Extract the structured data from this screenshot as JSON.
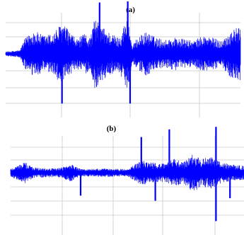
{
  "chart_data": [
    {
      "type": "line",
      "panel_label": "(a)",
      "title": "",
      "xlabel": "",
      "ylabel": "",
      "grid": true,
      "color": "#0000ff",
      "baseline_noise": 0.06,
      "envelope": [
        [
          0.0,
          0.06
        ],
        [
          0.06,
          0.1
        ],
        [
          0.08,
          0.4
        ],
        [
          0.12,
          0.65
        ],
        [
          0.16,
          0.5
        ],
        [
          0.2,
          0.55
        ],
        [
          0.24,
          0.85
        ],
        [
          0.26,
          0.7
        ],
        [
          0.3,
          0.4
        ],
        [
          0.34,
          0.55
        ],
        [
          0.36,
          0.45
        ],
        [
          0.38,
          0.98
        ],
        [
          0.4,
          0.8
        ],
        [
          0.44,
          0.6
        ],
        [
          0.48,
          0.45
        ],
        [
          0.52,
          1.0
        ],
        [
          0.54,
          0.2
        ],
        [
          0.56,
          0.45
        ],
        [
          0.6,
          0.6
        ],
        [
          0.64,
          0.45
        ],
        [
          0.68,
          0.38
        ],
        [
          0.72,
          0.45
        ],
        [
          0.76,
          0.4
        ],
        [
          0.8,
          0.35
        ],
        [
          0.84,
          0.5
        ],
        [
          0.88,
          0.45
        ],
        [
          0.92,
          0.35
        ],
        [
          0.96,
          0.65
        ],
        [
          1.0,
          0.75
        ]
      ],
      "spikes": [
        {
          "x": 0.24,
          "amp": 0.95,
          "dir": "down"
        },
        {
          "x": 0.4,
          "amp": 0.98,
          "dir": "up"
        },
        {
          "x": 0.52,
          "amp": 1.0,
          "dir": "up"
        },
        {
          "x": 0.53,
          "amp": 0.95,
          "dir": "down"
        }
      ]
    },
    {
      "type": "line",
      "panel_label": "(b)",
      "title": "",
      "xlabel": "",
      "ylabel": "",
      "grid": true,
      "color": "#0000ff",
      "baseline_noise": 0.08,
      "envelope": [
        [
          0.0,
          0.12
        ],
        [
          0.06,
          0.3
        ],
        [
          0.1,
          0.15
        ],
        [
          0.2,
          0.12
        ],
        [
          0.26,
          0.25
        ],
        [
          0.3,
          0.1
        ],
        [
          0.4,
          0.12
        ],
        [
          0.5,
          0.1
        ],
        [
          0.56,
          0.35
        ],
        [
          0.6,
          0.3
        ],
        [
          0.66,
          0.25
        ],
        [
          0.7,
          0.4
        ],
        [
          0.74,
          0.3
        ],
        [
          0.78,
          0.55
        ],
        [
          0.82,
          0.4
        ],
        [
          0.86,
          0.45
        ],
        [
          0.9,
          0.3
        ],
        [
          0.94,
          0.25
        ],
        [
          1.0,
          0.2
        ]
      ],
      "spikes": [
        {
          "x": 0.3,
          "amp": 0.45,
          "dir": "down"
        },
        {
          "x": 0.56,
          "amp": 0.7,
          "dir": "up"
        },
        {
          "x": 0.62,
          "amp": 0.55,
          "dir": "down"
        },
        {
          "x": 0.68,
          "amp": 0.85,
          "dir": "up"
        },
        {
          "x": 0.88,
          "amp": 0.9,
          "dir": "up"
        },
        {
          "x": 0.88,
          "amp": 0.95,
          "dir": "down"
        },
        {
          "x": 0.94,
          "amp": 0.5,
          "dir": "down"
        }
      ]
    }
  ]
}
